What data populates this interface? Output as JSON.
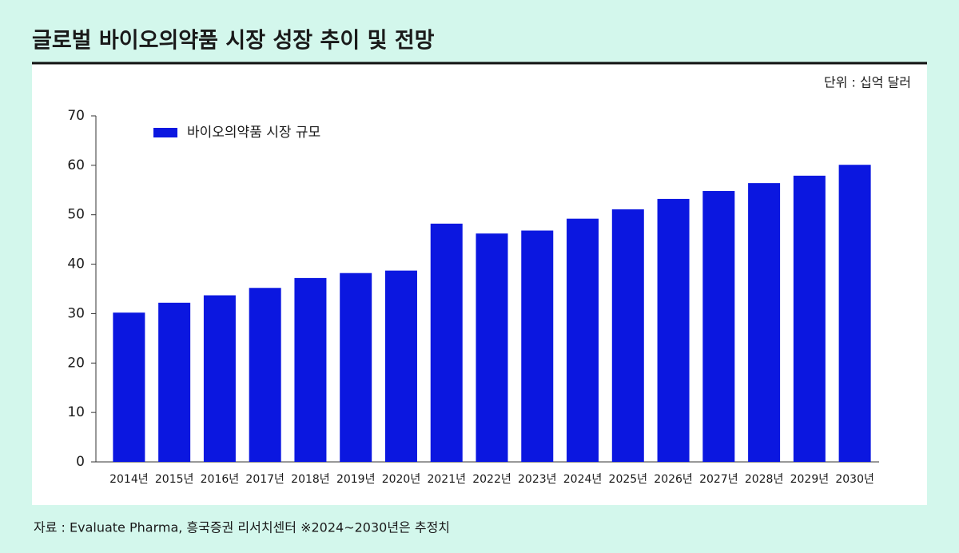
{
  "chart_data": {
    "type": "bar",
    "title": "글로벌 바이오의약품 시장 성장 추이 및 전망",
    "unit_label": "단위 : 십억 달러",
    "source": "자료 : Evaluate Pharma, 흥국증권 리서치센터  ※2024~2030년은 추정치",
    "categories": [
      "2014년",
      "2015년",
      "2016년",
      "2017년",
      "2018년",
      "2019년",
      "2020년",
      "2021년",
      "2022년",
      "2023년",
      "2024년",
      "2025년",
      "2026년",
      "2027년",
      "2028년",
      "2029년",
      "2030년"
    ],
    "series": [
      {
        "name": "바이오의약품 시장 규모",
        "color": "#0b17e0",
        "values": [
          30.2,
          32.2,
          33.7,
          35.2,
          37.2,
          38.2,
          38.7,
          48.2,
          46.2,
          46.8,
          49.2,
          51.1,
          53.2,
          54.8,
          56.4,
          57.9,
          60.1
        ]
      }
    ],
    "ylim": [
      0,
      70
    ],
    "yticks": [
      0,
      10,
      20,
      30,
      40,
      50,
      60,
      70
    ],
    "grid": false,
    "legend": "top-left"
  }
}
